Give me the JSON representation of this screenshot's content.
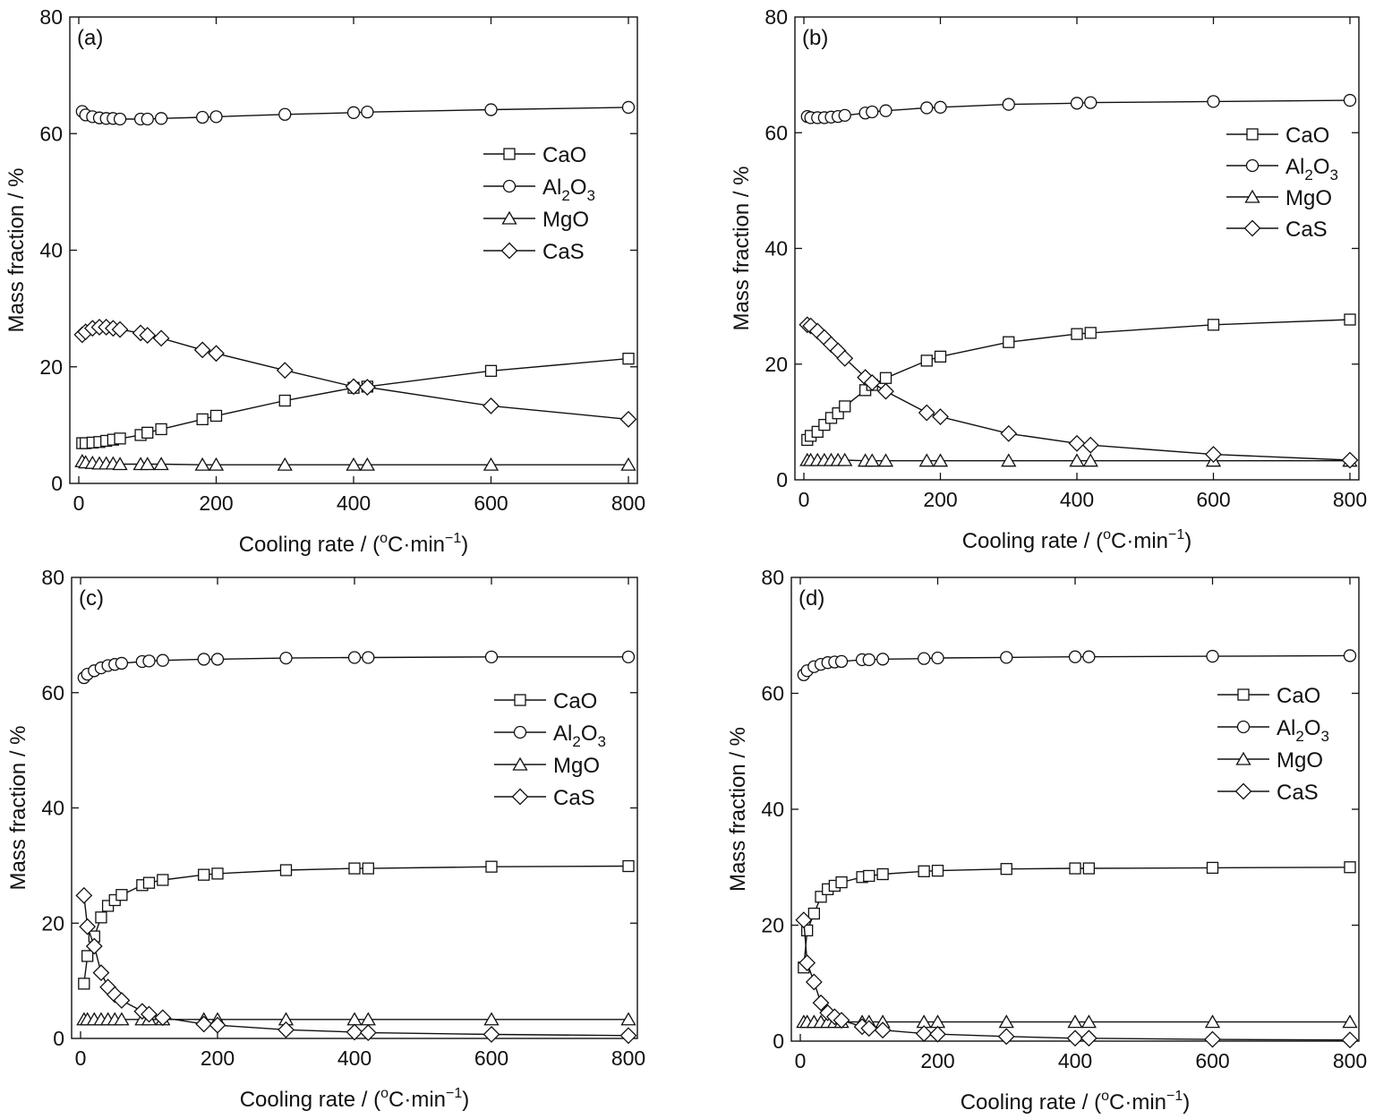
{
  "figure": {
    "xlabel_main": "Cooling rate / (",
    "xlabel_sup": "o",
    "xlabel_mid": "C·min",
    "xlabel_exp": "−1",
    "xlabel_end": ")",
    "ylabel": "Mass fraction / %",
    "legend_al2o3": [
      "Al",
      "2",
      "O",
      "3"
    ]
  },
  "chart_data": [
    {
      "panel_label": "(a)",
      "type": "line",
      "xlim": [
        0,
        800
      ],
      "ylim": [
        0,
        80
      ],
      "xticks": [
        0,
        200,
        400,
        600,
        800
      ],
      "yticks": [
        0,
        20,
        40,
        60,
        80
      ],
      "legend_position": "upper-right",
      "series": [
        {
          "name": "CaO",
          "marker": "square",
          "x": [
            5,
            10,
            20,
            30,
            40,
            50,
            60,
            90,
            100,
            120,
            180,
            200,
            300,
            400,
            420,
            600,
            800
          ],
          "y": [
            6.9,
            6.9,
            7.0,
            7.1,
            7.3,
            7.5,
            7.7,
            8.3,
            8.7,
            9.3,
            11.0,
            11.6,
            14.2,
            16.4,
            16.6,
            19.3,
            21.4
          ]
        },
        {
          "name": "Al2O3",
          "marker": "circle",
          "x": [
            5,
            10,
            20,
            30,
            40,
            50,
            60,
            90,
            100,
            120,
            180,
            200,
            300,
            400,
            420,
            600,
            800
          ],
          "y": [
            63.8,
            63.2,
            62.9,
            62.7,
            62.6,
            62.6,
            62.5,
            62.5,
            62.5,
            62.6,
            62.8,
            62.9,
            63.3,
            63.6,
            63.7,
            64.1,
            64.5
          ]
        },
        {
          "name": "MgO",
          "marker": "triangle",
          "x": [
            5,
            10,
            20,
            30,
            40,
            50,
            60,
            90,
            100,
            120,
            180,
            200,
            300,
            400,
            420,
            600,
            800
          ],
          "y": [
            3.8,
            3.6,
            3.5,
            3.4,
            3.4,
            3.4,
            3.3,
            3.3,
            3.3,
            3.3,
            3.2,
            3.2,
            3.2,
            3.2,
            3.2,
            3.2,
            3.2
          ]
        },
        {
          "name": "CaS",
          "marker": "diamond",
          "x": [
            5,
            10,
            20,
            30,
            40,
            50,
            60,
            90,
            100,
            120,
            180,
            200,
            300,
            400,
            420,
            600,
            800
          ],
          "y": [
            25.5,
            26.0,
            26.6,
            26.8,
            26.8,
            26.6,
            26.4,
            25.8,
            25.4,
            24.9,
            22.9,
            22.3,
            19.4,
            16.6,
            16.5,
            13.3,
            11.0
          ]
        }
      ]
    },
    {
      "panel_label": "(b)",
      "type": "line",
      "xlim": [
        0,
        800
      ],
      "ylim": [
        0,
        80
      ],
      "xticks": [
        0,
        200,
        400,
        600,
        800
      ],
      "yticks": [
        0,
        20,
        40,
        60,
        80
      ],
      "legend_position": "upper-right",
      "series": [
        {
          "name": "CaO",
          "marker": "square",
          "x": [
            5,
            10,
            20,
            30,
            40,
            50,
            60,
            90,
            100,
            120,
            180,
            200,
            300,
            400,
            420,
            600,
            800
          ],
          "y": [
            6.9,
            7.6,
            8.3,
            9.5,
            10.7,
            11.5,
            12.7,
            15.5,
            16.4,
            17.6,
            20.6,
            21.3,
            23.8,
            25.2,
            25.4,
            26.8,
            27.7
          ]
        },
        {
          "name": "Al2O3",
          "marker": "circle",
          "x": [
            5,
            10,
            20,
            30,
            40,
            50,
            60,
            90,
            100,
            120,
            180,
            200,
            300,
            400,
            420,
            600,
            800
          ],
          "y": [
            62.8,
            62.6,
            62.6,
            62.6,
            62.7,
            62.8,
            63.0,
            63.4,
            63.6,
            63.8,
            64.3,
            64.4,
            64.9,
            65.1,
            65.2,
            65.4,
            65.6
          ]
        },
        {
          "name": "MgO",
          "marker": "triangle",
          "x": [
            5,
            10,
            20,
            30,
            40,
            50,
            60,
            90,
            100,
            120,
            180,
            200,
            300,
            400,
            420,
            600,
            800
          ],
          "y": [
            3.4,
            3.4,
            3.4,
            3.4,
            3.4,
            3.4,
            3.4,
            3.3,
            3.3,
            3.3,
            3.3,
            3.3,
            3.3,
            3.3,
            3.3,
            3.3,
            3.3
          ]
        },
        {
          "name": "CaS",
          "marker": "diamond",
          "x": [
            5,
            10,
            20,
            30,
            40,
            50,
            60,
            90,
            100,
            120,
            180,
            200,
            300,
            400,
            420,
            600,
            800
          ],
          "y": [
            26.8,
            26.6,
            25.7,
            24.6,
            23.4,
            22.3,
            21.0,
            17.7,
            16.8,
            15.3,
            11.6,
            10.9,
            8.0,
            6.3,
            6.0,
            4.4,
            3.4
          ]
        }
      ]
    },
    {
      "panel_label": "(c)",
      "type": "line",
      "xlim": [
        0,
        800
      ],
      "ylim": [
        0,
        80
      ],
      "xticks": [
        0,
        200,
        400,
        600,
        800
      ],
      "yticks": [
        0,
        20,
        40,
        60,
        80
      ],
      "legend_position": "right",
      "series": [
        {
          "name": "CaO",
          "marker": "square",
          "x": [
            5,
            10,
            20,
            30,
            40,
            50,
            60,
            90,
            100,
            120,
            180,
            200,
            300,
            400,
            420,
            600,
            800
          ],
          "y": [
            9.5,
            14.3,
            17.7,
            21.0,
            23.0,
            24.0,
            24.9,
            26.6,
            27.0,
            27.5,
            28.4,
            28.6,
            29.2,
            29.5,
            29.5,
            29.8,
            29.9
          ]
        },
        {
          "name": "Al2O3",
          "marker": "circle",
          "x": [
            5,
            10,
            20,
            30,
            40,
            50,
            60,
            90,
            100,
            120,
            180,
            200,
            300,
            400,
            420,
            600,
            800
          ],
          "y": [
            62.6,
            63.2,
            63.8,
            64.3,
            64.7,
            64.9,
            65.1,
            65.4,
            65.5,
            65.6,
            65.8,
            65.8,
            66.0,
            66.1,
            66.1,
            66.2,
            66.2
          ]
        },
        {
          "name": "MgO",
          "marker": "triangle",
          "x": [
            5,
            10,
            20,
            30,
            40,
            50,
            60,
            90,
            100,
            120,
            180,
            200,
            300,
            400,
            420,
            600,
            800
          ],
          "y": [
            3.3,
            3.3,
            3.3,
            3.3,
            3.3,
            3.3,
            3.3,
            3.3,
            3.3,
            3.3,
            3.3,
            3.3,
            3.3,
            3.3,
            3.3,
            3.3,
            3.3
          ]
        },
        {
          "name": "CaS",
          "marker": "diamond",
          "x": [
            5,
            10,
            20,
            30,
            40,
            50,
            60,
            90,
            100,
            120,
            180,
            200,
            300,
            400,
            420,
            600,
            800
          ],
          "y": [
            24.8,
            19.4,
            16.0,
            11.4,
            8.9,
            7.6,
            6.6,
            4.7,
            4.2,
            3.6,
            2.5,
            2.3,
            1.5,
            1.1,
            1.0,
            0.7,
            0.5
          ]
        }
      ]
    },
    {
      "panel_label": "(d)",
      "type": "line",
      "xlim": [
        0,
        800
      ],
      "ylim": [
        0,
        80
      ],
      "xticks": [
        0,
        200,
        400,
        600,
        800
      ],
      "yticks": [
        0,
        20,
        40,
        60,
        80
      ],
      "legend_position": "right",
      "series": [
        {
          "name": "CaO",
          "marker": "square",
          "x": [
            5,
            10,
            20,
            30,
            40,
            50,
            60,
            90,
            100,
            120,
            180,
            200,
            300,
            400,
            420,
            600,
            800
          ],
          "y": [
            12.7,
            19.1,
            22.0,
            24.9,
            26.2,
            26.8,
            27.4,
            28.3,
            28.5,
            28.8,
            29.3,
            29.4,
            29.7,
            29.8,
            29.8,
            29.9,
            30.0
          ]
        },
        {
          "name": "Al2O3",
          "marker": "circle",
          "x": [
            5,
            10,
            20,
            30,
            40,
            50,
            60,
            90,
            100,
            120,
            180,
            200,
            300,
            400,
            420,
            600,
            800
          ],
          "y": [
            63.2,
            63.9,
            64.6,
            65.0,
            65.3,
            65.4,
            65.5,
            65.8,
            65.8,
            65.9,
            66.0,
            66.1,
            66.2,
            66.3,
            66.3,
            66.4,
            66.5
          ]
        },
        {
          "name": "MgO",
          "marker": "triangle",
          "x": [
            5,
            10,
            20,
            30,
            40,
            50,
            60,
            90,
            100,
            120,
            180,
            200,
            300,
            400,
            420,
            600,
            800
          ],
          "y": [
            3.3,
            3.3,
            3.3,
            3.3,
            3.3,
            3.3,
            3.3,
            3.3,
            3.3,
            3.3,
            3.3,
            3.3,
            3.3,
            3.3,
            3.3,
            3.3,
            3.3
          ]
        },
        {
          "name": "CaS",
          "marker": "diamond",
          "x": [
            5,
            10,
            20,
            30,
            40,
            50,
            60,
            90,
            100,
            120,
            180,
            200,
            300,
            400,
            420,
            600,
            800
          ],
          "y": [
            20.9,
            13.5,
            10.2,
            6.6,
            4.9,
            4.2,
            3.6,
            2.5,
            2.2,
            1.9,
            1.3,
            1.2,
            0.8,
            0.5,
            0.5,
            0.3,
            0.2
          ]
        }
      ]
    }
  ]
}
